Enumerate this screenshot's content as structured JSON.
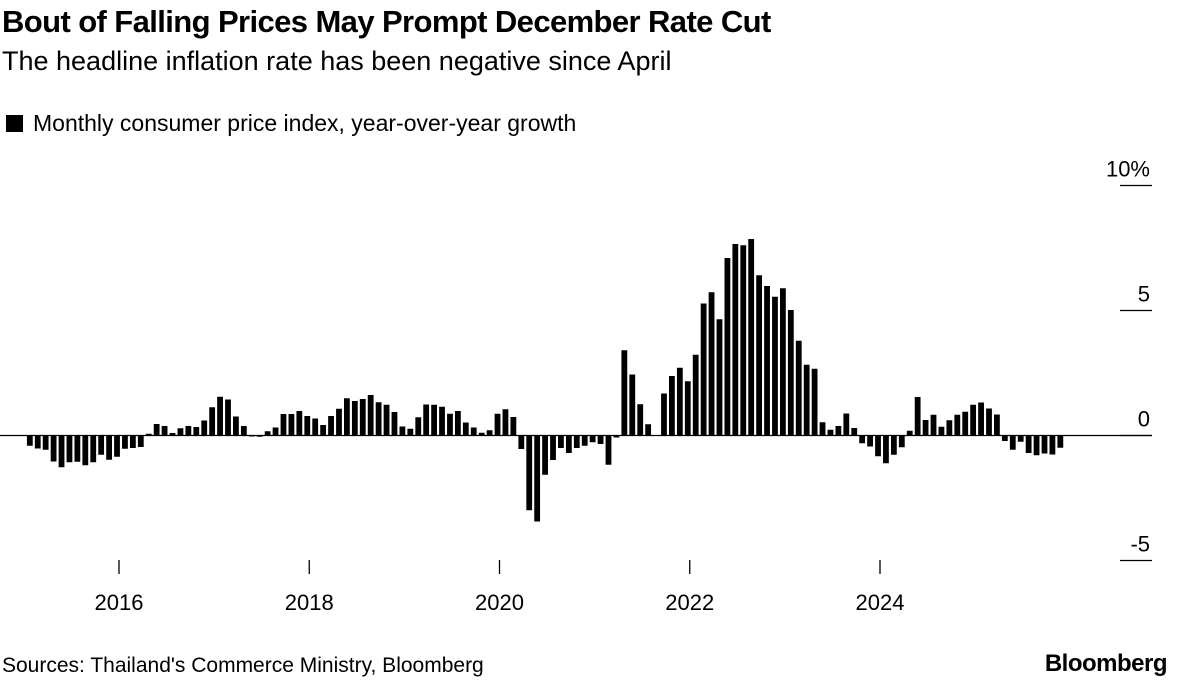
{
  "title": "Bout of Falling Prices May Prompt December Rate Cut",
  "subtitle": "The headline inflation rate has been negative since April",
  "source": "Sources: Thailand's Commerce Ministry, Bloomberg",
  "brand": "Bloomberg",
  "chart_data": {
    "type": "bar",
    "title": "Bout of Falling Prices May Prompt December Rate Cut",
    "subtitle": "The headline inflation rate has been negative since April",
    "legend": [
      {
        "name": "Monthly consumer price index, year-over-year growth",
        "color": "#000000"
      }
    ],
    "legend_placement": "top-left",
    "x_start": "2015-01",
    "x_end": "2025-11",
    "x_ticks": [
      "2016",
      "2018",
      "2020",
      "2022",
      "2024"
    ],
    "y_ticks": [
      "10%",
      "5",
      "0",
      "-5"
    ],
    "ylim": [
      -5,
      10
    ],
    "y_axis_side": "right",
    "grid": false,
    "bar_color": "#000000",
    "series": [
      {
        "name": "Monthly consumer price index, year-over-year growth",
        "values": [
          -0.41,
          -0.52,
          -0.57,
          -1.04,
          -1.27,
          -1.07,
          -1.05,
          -1.19,
          -1.07,
          -0.77,
          -0.97,
          -0.85,
          -0.53,
          -0.5,
          -0.46,
          0.07,
          0.46,
          0.38,
          0.1,
          0.29,
          0.38,
          0.34,
          0.6,
          1.13,
          1.55,
          1.44,
          0.76,
          0.38,
          -0.04,
          -0.05,
          0.17,
          0.32,
          0.86,
          0.86,
          0.98,
          0.78,
          0.68,
          0.42,
          0.78,
          1.07,
          1.49,
          1.38,
          1.46,
          1.62,
          1.33,
          1.23,
          0.94,
          0.36,
          0.27,
          0.73,
          1.24,
          1.23,
          1.15,
          0.87,
          0.98,
          0.52,
          0.32,
          0.11,
          0.21,
          0.87,
          1.05,
          0.74,
          -0.54,
          -2.99,
          -3.44,
          -1.57,
          -0.98,
          -0.5,
          -0.7,
          -0.5,
          -0.41,
          -0.27,
          -0.34,
          -1.17,
          -0.08,
          3.41,
          2.44,
          1.25,
          0.45,
          0.02,
          1.68,
          2.38,
          2.71,
          2.17,
          3.23,
          5.28,
          5.73,
          4.65,
          7.1,
          7.66,
          7.61,
          7.86,
          6.41,
          5.98,
          5.55,
          5.89,
          5.02,
          3.79,
          2.83,
          2.67,
          0.53,
          0.23,
          0.38,
          0.88,
          0.3,
          -0.31,
          -0.44,
          -0.83,
          -1.11,
          -0.77,
          -0.47,
          0.19,
          1.54,
          0.62,
          0.83,
          0.35,
          0.61,
          0.83,
          0.95,
          1.23,
          1.32,
          1.08,
          0.84,
          -0.22,
          -0.57,
          -0.25,
          -0.7,
          -0.79,
          -0.72,
          -0.76,
          -0.49
        ]
      }
    ]
  }
}
